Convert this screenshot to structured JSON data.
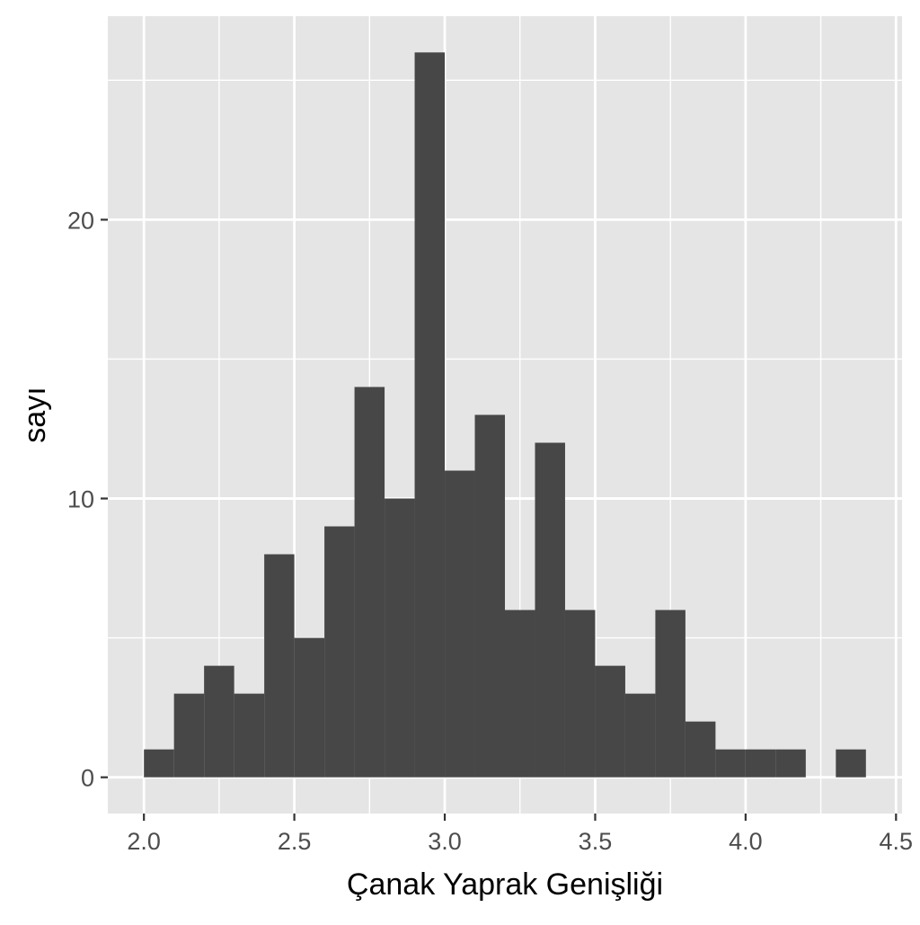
{
  "chart_data": {
    "type": "bar",
    "subtype": "histogram",
    "xlabel": "Çanak Yaprak Genişliği",
    "ylabel": "sayı",
    "bin_width": 0.1,
    "bins": [
      {
        "x0": 2.0,
        "x1": 2.1,
        "count": 1
      },
      {
        "x0": 2.1,
        "x1": 2.2,
        "count": 3
      },
      {
        "x0": 2.2,
        "x1": 2.3,
        "count": 4
      },
      {
        "x0": 2.3,
        "x1": 2.4,
        "count": 3
      },
      {
        "x0": 2.4,
        "x1": 2.5,
        "count": 8
      },
      {
        "x0": 2.5,
        "x1": 2.6,
        "count": 5
      },
      {
        "x0": 2.6,
        "x1": 2.7,
        "count": 9
      },
      {
        "x0": 2.7,
        "x1": 2.8,
        "count": 14
      },
      {
        "x0": 2.8,
        "x1": 2.9,
        "count": 10
      },
      {
        "x0": 2.9,
        "x1": 3.0,
        "count": 26
      },
      {
        "x0": 3.0,
        "x1": 3.1,
        "count": 11
      },
      {
        "x0": 3.1,
        "x1": 3.2,
        "count": 13
      },
      {
        "x0": 3.2,
        "x1": 3.3,
        "count": 6
      },
      {
        "x0": 3.3,
        "x1": 3.4,
        "count": 12
      },
      {
        "x0": 3.4,
        "x1": 3.5,
        "count": 6
      },
      {
        "x0": 3.5,
        "x1": 3.6,
        "count": 4
      },
      {
        "x0": 3.6,
        "x1": 3.7,
        "count": 3
      },
      {
        "x0": 3.7,
        "x1": 3.8,
        "count": 6
      },
      {
        "x0": 3.8,
        "x1": 3.9,
        "count": 2
      },
      {
        "x0": 3.9,
        "x1": 4.0,
        "count": 1
      },
      {
        "x0": 4.0,
        "x1": 4.1,
        "count": 1
      },
      {
        "x0": 4.1,
        "x1": 4.2,
        "count": 1
      },
      {
        "x0": 4.2,
        "x1": 4.3,
        "count": 0
      },
      {
        "x0": 4.3,
        "x1": 4.4,
        "count": 1
      }
    ],
    "xlim": [
      1.88,
      4.52
    ],
    "ylim": [
      -1.3,
      27.3
    ],
    "x_ticks": [
      2.0,
      2.5,
      3.0,
      3.5,
      4.0,
      4.5
    ],
    "x_tick_labels": [
      "2.0",
      "2.5",
      "3.0",
      "3.5",
      "4.0",
      "4.5"
    ],
    "y_ticks": [
      0,
      10,
      20
    ],
    "y_tick_labels": [
      "0",
      "10",
      "20"
    ],
    "x_minor_ticks": [
      2.25,
      2.75,
      3.25,
      3.75,
      4.25
    ],
    "y_minor_ticks": [
      5,
      15,
      25
    ],
    "grid": true,
    "colors": {
      "panel": "#e5e5e5",
      "grid": "#ffffff",
      "bar": "#474747",
      "tick": "#333333"
    }
  }
}
